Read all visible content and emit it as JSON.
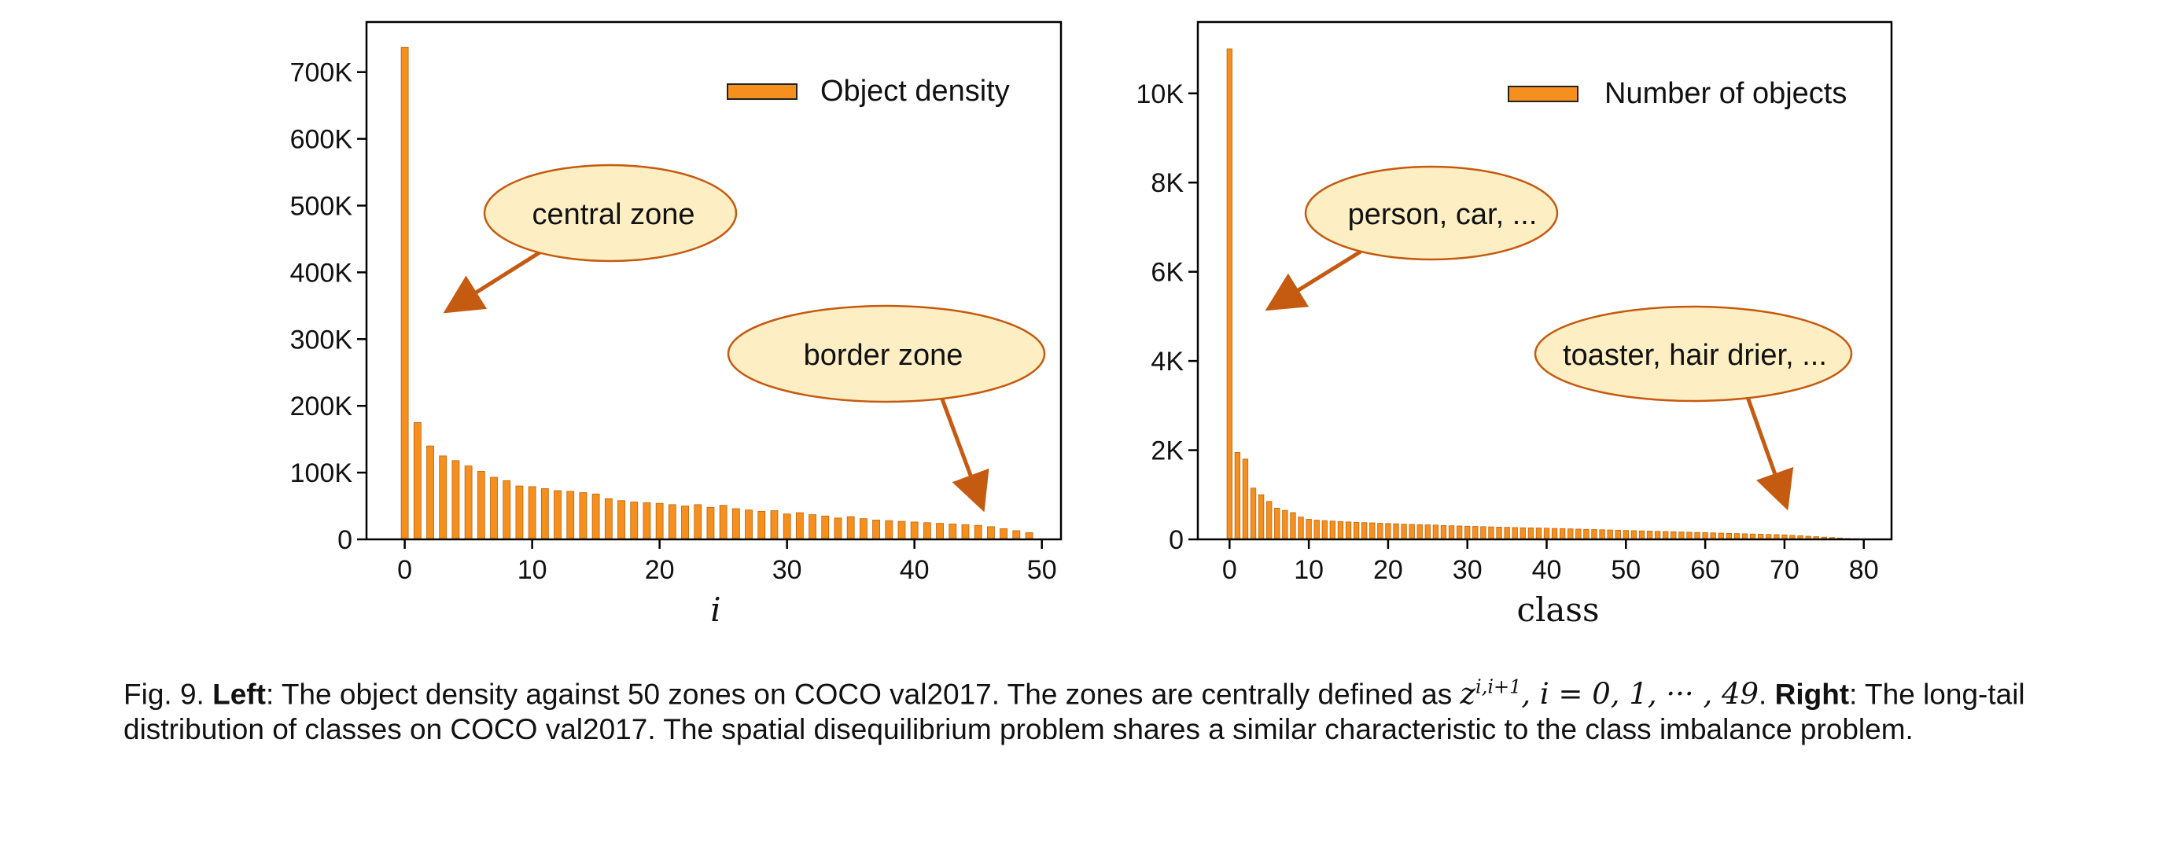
{
  "chart_data": [
    {
      "type": "bar",
      "xlabel": "i",
      "ylabel": "",
      "xlim": [
        -3,
        51.5
      ],
      "ylim": [
        0,
        775000
      ],
      "xticks": [
        "0",
        "10",
        "20",
        "30",
        "40",
        "50"
      ],
      "yticks": [
        "0",
        "100K",
        "200K",
        "300K",
        "400K",
        "500K",
        "600K",
        "700K"
      ],
      "grid": false,
      "legend_position": "top-right",
      "series": [
        {
          "name": "Object density",
          "color": "#f5901e",
          "x": [
            0,
            1,
            2,
            3,
            4,
            5,
            6,
            7,
            8,
            9,
            10,
            11,
            12,
            13,
            14,
            15,
            16,
            17,
            18,
            19,
            20,
            21,
            22,
            23,
            24,
            25,
            26,
            27,
            28,
            29,
            30,
            31,
            32,
            33,
            34,
            35,
            36,
            37,
            38,
            39,
            40,
            41,
            42,
            43,
            44,
            45,
            46,
            47,
            48,
            49
          ],
          "values": [
            737000,
            175000,
            140000,
            125000,
            118000,
            110000,
            102000,
            93000,
            88000,
            80000,
            79000,
            76000,
            73000,
            72000,
            70000,
            68000,
            61000,
            58000,
            56000,
            55000,
            54000,
            52000,
            50000,
            52000,
            48000,
            51000,
            46000,
            44000,
            42000,
            43000,
            38000,
            40000,
            37000,
            35000,
            32000,
            34000,
            31000,
            29000,
            28000,
            27000,
            26000,
            25000,
            24000,
            23000,
            22000,
            21000,
            19000,
            16000,
            13000,
            10000
          ]
        }
      ],
      "annotations": [
        "central zone",
        "border zone"
      ]
    },
    {
      "type": "bar",
      "xlabel": "class",
      "ylabel": "",
      "xlim": [
        -4,
        83.5
      ],
      "ylim": [
        0,
        11600
      ],
      "xticks": [
        "0",
        "10",
        "20",
        "30",
        "40",
        "50",
        "60",
        "70",
        "80"
      ],
      "yticks": [
        "0",
        "2K",
        "4K",
        "6K",
        "8K",
        "10K"
      ],
      "grid": false,
      "legend_position": "top-right",
      "series": [
        {
          "name": "Number of objects",
          "color": "#f5901e",
          "x": [
            0,
            1,
            2,
            3,
            4,
            5,
            6,
            7,
            8,
            9,
            10,
            11,
            12,
            13,
            14,
            15,
            16,
            17,
            18,
            19,
            20,
            21,
            22,
            23,
            24,
            25,
            26,
            27,
            28,
            29,
            30,
            31,
            32,
            33,
            34,
            35,
            36,
            37,
            38,
            39,
            40,
            41,
            42,
            43,
            44,
            45,
            46,
            47,
            48,
            49,
            50,
            51,
            52,
            53,
            54,
            55,
            56,
            57,
            58,
            59,
            60,
            61,
            62,
            63,
            64,
            65,
            66,
            67,
            68,
            69,
            70,
            71,
            72,
            73,
            74,
            75,
            76,
            77,
            78,
            79
          ],
          "values": [
            11000,
            1950,
            1800,
            1150,
            1000,
            850,
            700,
            650,
            600,
            500,
            450,
            430,
            420,
            410,
            400,
            390,
            380,
            375,
            370,
            360,
            355,
            350,
            340,
            335,
            330,
            325,
            320,
            310,
            305,
            300,
            295,
            290,
            285,
            280,
            275,
            270,
            265,
            260,
            258,
            255,
            250,
            245,
            240,
            235,
            230,
            225,
            220,
            215,
            210,
            205,
            200,
            195,
            190,
            185,
            180,
            175,
            170,
            165,
            160,
            155,
            150,
            145,
            140,
            135,
            130,
            125,
            120,
            115,
            110,
            105,
            100,
            90,
            80,
            70,
            60,
            50,
            40,
            30,
            20,
            15
          ]
        }
      ],
      "annotations": [
        "person, car, ...",
        "toaster, hair drier, ..."
      ]
    }
  ],
  "caption": {
    "fig_label": "Fig. 9.",
    "left_label": "Left",
    "left_text_1": ": The object density against 50 zones on COCO val2017. The zones are centrally defined as ",
    "zone_symbol": "z",
    "zone_superscript": "i,i+1",
    "zone_range": ", i = 0, 1, ··· , 49",
    "period": ".",
    "right_label": "Right",
    "right_text": ": The long-tail distribution of classes on COCO val2017. The spatial disequilibrium problem shares a similar characteristic to the class imbalance problem."
  }
}
